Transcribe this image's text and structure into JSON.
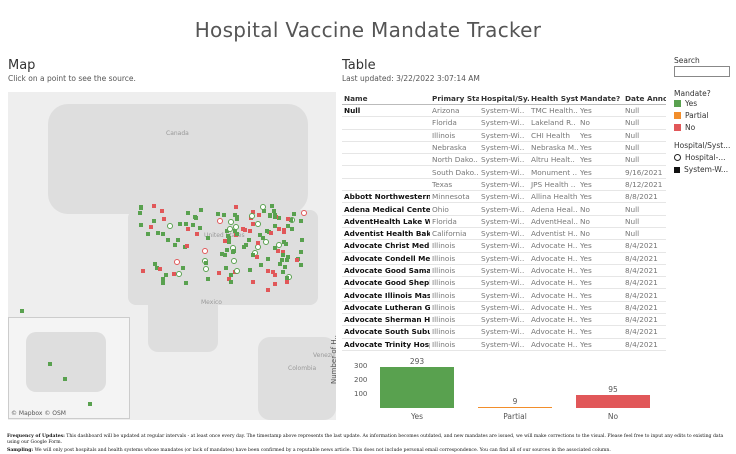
{
  "page_title": "Hospital Vaccine Mandate Tracker",
  "map": {
    "title": "Map",
    "subtitle": "Click on a point to see the source.",
    "credit": "© Mapbox © OSM",
    "labels": {
      "canada": "Canada",
      "us": "United States",
      "mexico": "Mexico",
      "venezuela": "Venezu",
      "colombia": "Colombia"
    }
  },
  "table": {
    "title": "Table",
    "last_updated": "Last updated: 3/22/2022 3:07:14 AM",
    "columns": [
      "Name",
      "Primary Sta..",
      "Hospital/Sy..",
      "Health Syst..",
      "Mandate?",
      "Date Anno"
    ],
    "rows": [
      [
        "Null",
        "Arizona",
        "System-Wi..",
        "TMC Health..",
        "Yes",
        "Null"
      ],
      [
        "",
        "Florida",
        "System-Wi..",
        "Lakeland R..",
        "No",
        "Null"
      ],
      [
        "",
        "Illinois",
        "System-Wi..",
        "CHI Health",
        "Yes",
        "Null"
      ],
      [
        "",
        "Nebraska",
        "System-Wi..",
        "Nebraska M..",
        "Yes",
        "Null"
      ],
      [
        "",
        "North Dako..",
        "System-Wi..",
        "Altru Healt..",
        "Yes",
        "Null"
      ],
      [
        "",
        "South Dako..",
        "System-Wi..",
        "Monument ..",
        "Yes",
        "9/16/2021"
      ],
      [
        "",
        "Texas",
        "System-Wi..",
        "JPS Health ..",
        "Yes",
        "8/12/2021"
      ],
      [
        "Abbott Northwestern H..",
        "Minnesota",
        "System-Wi..",
        "Allina Health",
        "Yes",
        "8/8/2021"
      ],
      [
        "Adena Medical Center",
        "Ohio",
        "System-Wi..",
        "Adena Heal..",
        "No",
        "Null"
      ],
      [
        "AdventHealth Lake Wal..",
        "Florida",
        "System-Wi..",
        "AdventHeal..",
        "No",
        "Null"
      ],
      [
        "Adventist Health Baker..",
        "California",
        "System-Wi..",
        "Adventist H..",
        "No",
        "Null"
      ],
      [
        "Advocate Christ Medic..",
        "Illinois",
        "System-Wi..",
        "Advocate H..",
        "Yes",
        "8/4/2021"
      ],
      [
        "Advocate Condell Medic..",
        "Illinois",
        "System-Wi..",
        "Advocate H..",
        "Yes",
        "8/4/2021"
      ],
      [
        "Advocate Good Samarit..",
        "Illinois",
        "System-Wi..",
        "Advocate H..",
        "Yes",
        "8/4/2021"
      ],
      [
        "Advocate Good Shepher..",
        "Illinois",
        "System-Wi..",
        "Advocate H..",
        "Yes",
        "8/4/2021"
      ],
      [
        "Advocate Illinois Mason..",
        "Illinois",
        "System-Wi..",
        "Advocate H..",
        "Yes",
        "8/4/2021"
      ],
      [
        "Advocate Lutheran Gen..",
        "Illinois",
        "System-Wi..",
        "Advocate H..",
        "Yes",
        "8/4/2021"
      ],
      [
        "Advocate Sherman Hos..",
        "Illinois",
        "System-Wi..",
        "Advocate H..",
        "Yes",
        "8/4/2021"
      ],
      [
        "Advocate South Suburb..",
        "Illinois",
        "System-Wi..",
        "Advocate H..",
        "Yes",
        "8/4/2021"
      ],
      [
        "Advocate Trinity Hospit..",
        "Illinois",
        "System-Wi..",
        "Advocate H..",
        "Yes",
        "8/4/2021"
      ]
    ]
  },
  "filters": {
    "search_label": "Search",
    "search_value": "",
    "mandate_title": "Mandate?",
    "mandate_items": [
      {
        "label": "Yes",
        "color": "#59a14f"
      },
      {
        "label": "Partial",
        "color": "#f28e2b"
      },
      {
        "label": "No",
        "color": "#e15759"
      }
    ],
    "type_title": "Hospital/Syst...",
    "type_items": [
      {
        "label": "Hospital-...",
        "icon": "circle-icon"
      },
      {
        "label": "System-W...",
        "icon": "square-icon"
      }
    ]
  },
  "chart_data": {
    "type": "bar",
    "title": "",
    "categories": [
      "Yes",
      "Partial",
      "No"
    ],
    "values": [
      293,
      9,
      95
    ],
    "colors": [
      "#59a14f",
      "#f28e2b",
      "#e15759"
    ],
    "ylabel": "Number of H..",
    "yticks": [
      100,
      200,
      300
    ],
    "ylim": [
      0,
      330
    ]
  },
  "footer": {
    "freq_label": "Frequency of Updates:",
    "freq_text": "This dashboard will be updated at regular intervals - at least once every day. The timestamp above represents the last update. As information becomes outdated, and new mandates are issued, we will make corrections to the visual. Please feel free to input any edits to existing data using our Google Form.",
    "sampling_label": "Sampling:",
    "sampling_text": "We will only post hospitals and health systems whose mandates (or lack of mandates) have been confirmed by a reputable news article. This does not include personal email correspondence. You can find all of our sources in the associated column."
  }
}
